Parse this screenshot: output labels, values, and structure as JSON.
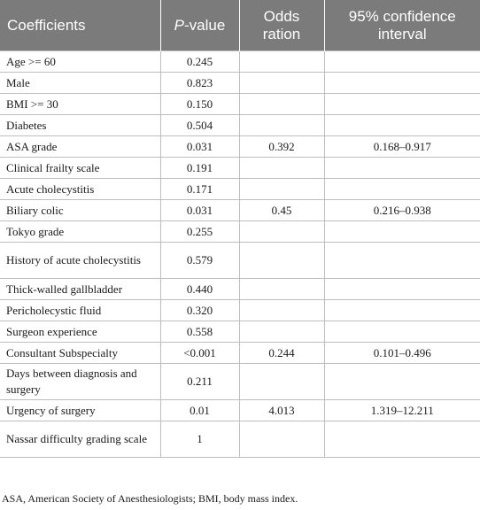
{
  "table": {
    "headers": {
      "coefficients": "Coefficients",
      "p_value_letter": "P",
      "p_value_rest": "-value",
      "odds": "Odds ration",
      "ci": "95% confidence interval"
    },
    "rows": [
      {
        "coefficient": "Age >= 60",
        "p": "0.245",
        "odds": "",
        "ci": ""
      },
      {
        "coefficient": "Male",
        "p": "0.823",
        "odds": "",
        "ci": ""
      },
      {
        "coefficient": "BMI >= 30",
        "p": "0.150",
        "odds": "",
        "ci": ""
      },
      {
        "coefficient": "Diabetes",
        "p": "0.504",
        "odds": "",
        "ci": ""
      },
      {
        "coefficient": "ASA grade",
        "p": "0.031",
        "odds": "0.392",
        "ci": "0.168–0.917"
      },
      {
        "coefficient": "Clinical frailty scale",
        "p": "0.191",
        "odds": "",
        "ci": ""
      },
      {
        "coefficient": "Acute cholecystitis",
        "p": "0.171",
        "odds": "",
        "ci": ""
      },
      {
        "coefficient": "Biliary colic",
        "p": "0.031",
        "odds": "0.45",
        "ci": "0.216–0.938"
      },
      {
        "coefficient": "Tokyo grade",
        "p": "0.255",
        "odds": "",
        "ci": ""
      },
      {
        "coefficient": "History of acute cholecystitis",
        "p": "0.579",
        "odds": "",
        "ci": ""
      },
      {
        "coefficient": "Thick-walled gallbladder",
        "p": "0.440",
        "odds": "",
        "ci": ""
      },
      {
        "coefficient": "Pericholecystic fluid",
        "p": "0.320",
        "odds": "",
        "ci": ""
      },
      {
        "coefficient": "Surgeon experience",
        "p": "0.558",
        "odds": "",
        "ci": ""
      },
      {
        "coefficient": "Consultant Subspecialty",
        "p": "<0.001",
        "odds": "0.244",
        "ci": "0.101–0.496"
      },
      {
        "coefficient": "Days between diagnosis and surgery",
        "p": "0.211",
        "odds": "",
        "ci": ""
      },
      {
        "coefficient": "Urgency of surgery",
        "p": "0.01",
        "odds": "4.013",
        "ci": "1.319–12.211"
      },
      {
        "coefficient": "Nassar difficulty grading scale",
        "p": "1",
        "odds": "",
        "ci": ""
      }
    ]
  },
  "footnote": "ASA, American Society of Anesthesiologists; BMI, body mass index."
}
